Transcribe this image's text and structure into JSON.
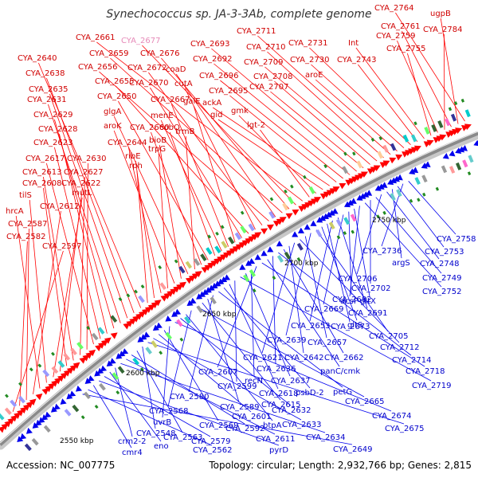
{
  "title": "Synechococcus sp. JA-3-3Ab, complete genome",
  "footer": {
    "accession": "Accession: NC_007775",
    "summary": "Topology: circular; Length: 2,932,766 bp; Genes: 2,815"
  },
  "colors": {
    "forward": "#ff0000",
    "reverse": "#0000ee",
    "pink_label": "#e68ab8",
    "backbone": "#8c8c8c",
    "tick": "#228b22"
  },
  "kbp_labels": [
    "2550 kbp",
    "2600 kbp",
    "2650 kbp",
    "2700 kbp",
    "2750 kbp"
  ],
  "forward_labels": [
    "CYA_2764",
    "ugpB",
    "CYA_2761",
    "CYA_2784",
    "CYA_2759",
    "CYA_2755",
    "Int",
    "CYA_2743",
    "CYA_2731",
    "CYA_2730",
    "aroE",
    "CYA_2711",
    "CYA_2710",
    "CYA_2709",
    "CYA_2708",
    "CYA_2707",
    "CYA_2693",
    "CYA_2692",
    "CYA_2696",
    "CYA_2695",
    "ackA",
    "gid",
    "gmk",
    "lgt-2",
    "CYA_2661",
    "CYA_2677",
    "CYA_2676",
    "CYA_2659",
    "coaD",
    "CYA_2656",
    "CYA_2672",
    "cutA",
    "CYA_2655",
    "CYA_2670",
    "galE",
    "CYA_2667",
    "menE",
    "cobQ",
    "CYA_2650",
    "CYA_2660",
    "trmB",
    "glgA",
    "bioB",
    "aroK",
    "trpG",
    "CYA_2644",
    "ribE",
    "rph",
    "CYA_2640",
    "CYA_2638",
    "CYA_2635",
    "CYA_2631",
    "CYA_2629",
    "CYA_2628",
    "CYA_2623",
    "CYA_2617",
    "CYA_2630",
    "CYA_2627",
    "CYA_2613",
    "CYA_2608",
    "CYA_2622",
    "mutL",
    "tilS",
    "hrcA",
    "CYA_2612",
    "CYA_2587",
    "CYA_2582",
    "CYA_2597"
  ],
  "reverse_labels": [
    "CYA_2758",
    "CYA_2736",
    "CYA_2753",
    "argS",
    "CYA_2748",
    "CYA_2706",
    "CYA_2749",
    "CYA_2702",
    "CYA_2752",
    "acsF",
    "gltX",
    "CYA_2682",
    "CYA_2669",
    "CYA_2691",
    "CYA_2653",
    "CYA_2673",
    "gltS",
    "CYA_2705",
    "CYA_2639",
    "CYA_2657",
    "CYA_2712",
    "CYA_2621",
    "CYA_2642",
    "CYA_2662",
    "CYA_2714",
    "CYA_2636",
    "panC/cmk",
    "CYA_2718",
    "CYA_2607",
    "recN",
    "CYA_2637",
    "CYA_2719",
    "CYA_2599",
    "CYA_2618",
    "psbD-2",
    "petG",
    "CYA_2580",
    "CYA_2589",
    "CYA_2615",
    "CYA_2665",
    "CYA_2568",
    "btpA",
    "CYA_2632",
    "CYA_2674",
    "uvrB",
    "CYA_2569",
    "CYA_2601",
    "CYA_2633",
    "CYA_2675",
    "CYA_2548",
    "CYA_2563",
    "CYA_2592",
    "CYA_2611",
    "CYA_2634",
    "crm2-2",
    "eno",
    "CYA_2579",
    "pyrD",
    "cmr4",
    "CYA_2562",
    "CYA_2649"
  ]
}
